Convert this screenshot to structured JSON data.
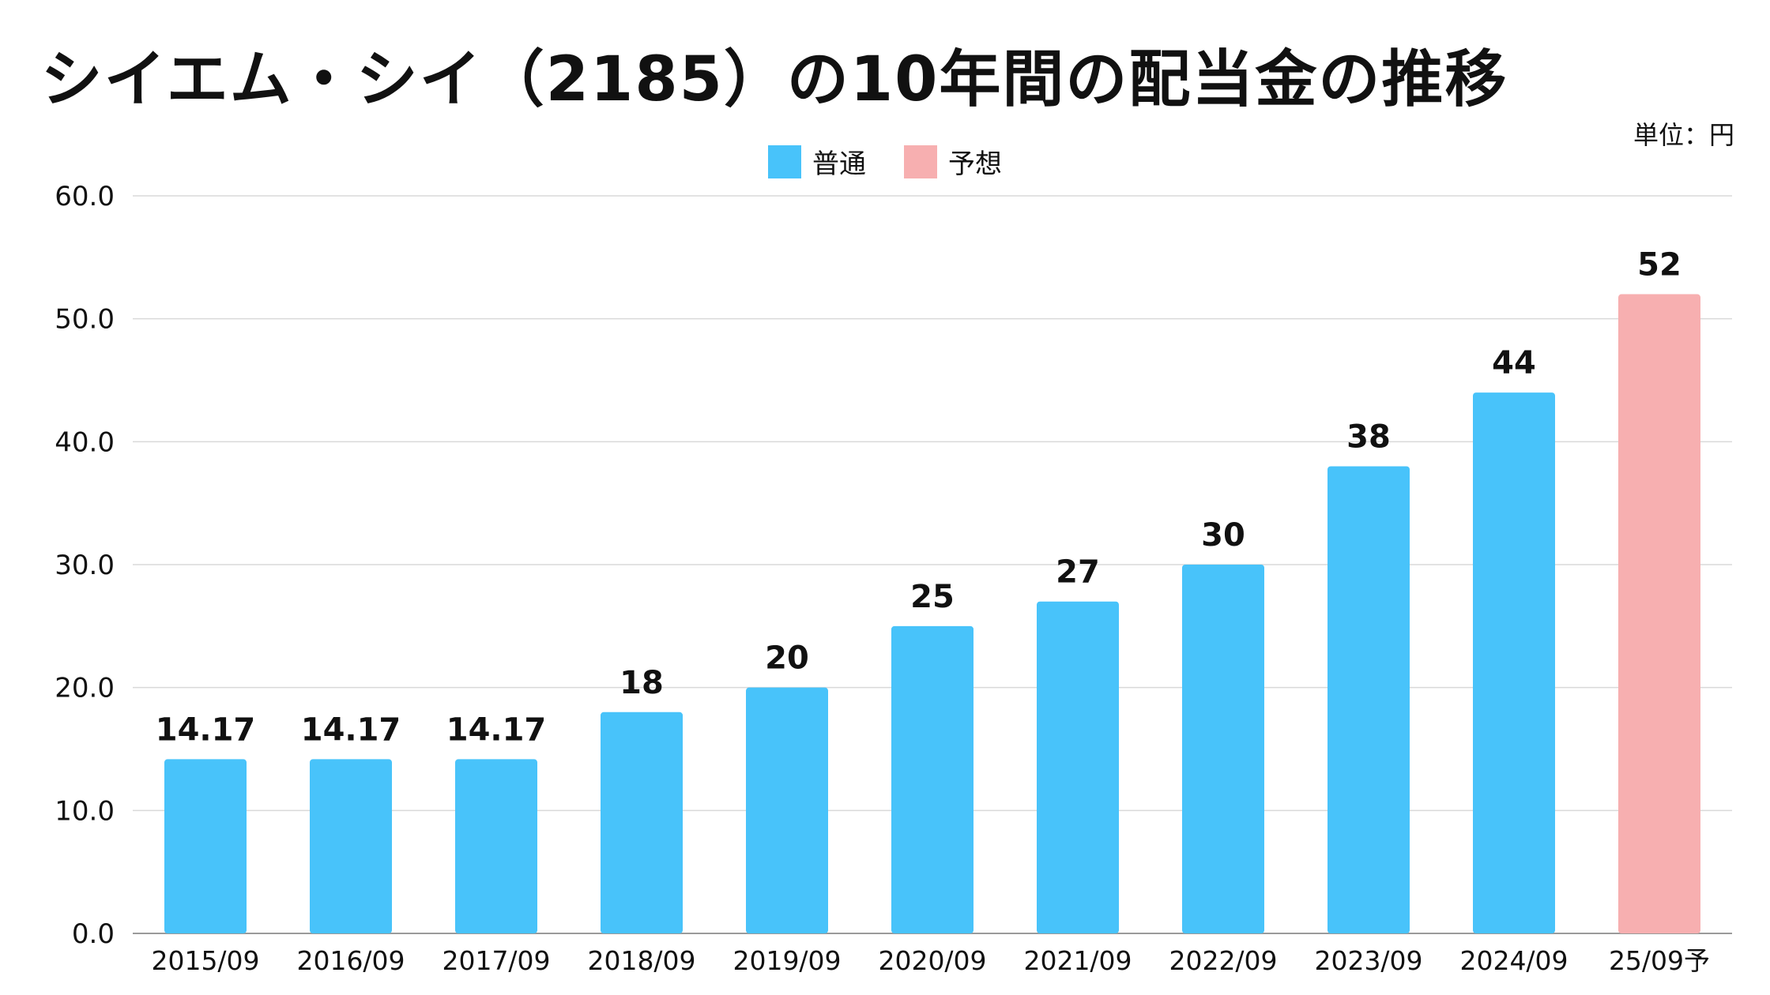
{
  "title": "シイエム・シイ（2185）の10年間の配当金の推移",
  "unit_label": "単位：円",
  "legend": [
    {
      "label": "普通",
      "color": "#48C3FA"
    },
    {
      "label": "予想",
      "color": "#F7AFB0"
    }
  ],
  "chart_data": {
    "type": "bar",
    "title": "シイエム・シイ（2185）の10年間の配当金の推移",
    "categories": [
      "2015/09",
      "2016/09",
      "2017/09",
      "2018/09",
      "2019/09",
      "2020/09",
      "2021/09",
      "2022/09",
      "2023/09",
      "2024/09",
      "25/09予"
    ],
    "values": [
      14.17,
      14.17,
      14.17,
      18,
      20,
      25,
      27,
      30,
      38,
      44,
      52
    ],
    "value_labels": [
      "14.17",
      "14.17",
      "14.17",
      "18",
      "20",
      "25",
      "27",
      "30",
      "38",
      "44",
      "52"
    ],
    "series_type": [
      "普通",
      "普通",
      "普通",
      "普通",
      "普通",
      "普通",
      "普通",
      "普通",
      "普通",
      "普通",
      "予想"
    ],
    "ylim": [
      0,
      60
    ],
    "yticks": [
      "0.0",
      "10.0",
      "20.0",
      "30.0",
      "40.0",
      "50.0",
      "60.0"
    ],
    "grid": true,
    "legend_position": "top-center"
  }
}
